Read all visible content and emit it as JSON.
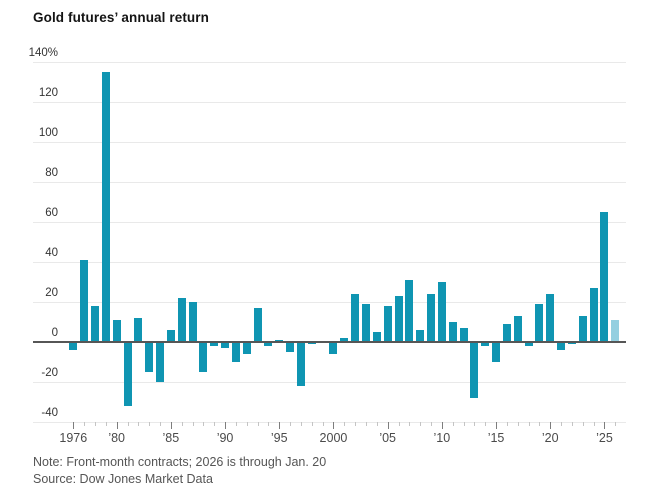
{
  "header": {
    "title": "Gold futures’ annual return"
  },
  "footer": {
    "note": "Note: Front-month contracts; 2026 is through Jan. 20",
    "source": "Source: Dow Jones Market Data"
  },
  "chart_data": {
    "type": "bar",
    "title": "Gold futures’ annual return",
    "unit": "%",
    "categories": [
      1976,
      1977,
      1978,
      1979,
      1980,
      1981,
      1982,
      1983,
      1984,
      1985,
      1986,
      1987,
      1988,
      1989,
      1990,
      1991,
      1992,
      1993,
      1994,
      1995,
      1996,
      1997,
      1998,
      1999,
      2000,
      2001,
      2002,
      2003,
      2004,
      2005,
      2006,
      2007,
      2008,
      2009,
      2010,
      2011,
      2012,
      2013,
      2014,
      2015,
      2016,
      2017,
      2018,
      2019,
      2020,
      2021,
      2022,
      2023,
      2024,
      2025,
      2026
    ],
    "values": [
      -4,
      41,
      18,
      135,
      11,
      -32,
      12,
      -15,
      -20,
      6,
      22,
      20,
      -15,
      -2,
      -3,
      -10,
      -6,
      17,
      -2,
      1,
      -5,
      -22,
      -1,
      0,
      -6,
      2,
      24,
      19,
      5,
      18,
      23,
      31,
      6,
      24,
      30,
      10,
      7,
      -28,
      -2,
      -10,
      9,
      13,
      -2,
      19,
      24,
      -4,
      -1,
      13,
      27,
      65,
      11
    ],
    "highlight_years": [
      2026
    ],
    "ylim": [
      -40,
      140
    ],
    "grid": true,
    "legend_position": "none",
    "yticks": [
      {
        "value": 140,
        "label": "140%"
      },
      {
        "value": 120,
        "label": "120"
      },
      {
        "value": 100,
        "label": "100"
      },
      {
        "value": 80,
        "label": "80"
      },
      {
        "value": 60,
        "label": "60"
      },
      {
        "value": 40,
        "label": "40"
      },
      {
        "value": 20,
        "label": "20"
      },
      {
        "value": 0,
        "label": "0"
      },
      {
        "value": -20,
        "label": "-20"
      },
      {
        "value": -40,
        "label": "-40"
      }
    ],
    "xticks": [
      {
        "year": 1976,
        "label": "1976"
      },
      {
        "year": 1980,
        "label": "’80"
      },
      {
        "year": 1985,
        "label": "’85"
      },
      {
        "year": 1990,
        "label": "’90"
      },
      {
        "year": 1995,
        "label": "’95"
      },
      {
        "year": 2000,
        "label": "2000"
      },
      {
        "year": 2005,
        "label": "’05"
      },
      {
        "year": 2010,
        "label": "’10"
      },
      {
        "year": 2015,
        "label": "’15"
      },
      {
        "year": 2020,
        "label": "’20"
      },
      {
        "year": 2025,
        "label": "’25"
      }
    ],
    "colors": {
      "bar": "#0f95b2",
      "highlight_bar": "#94cfe0",
      "gridline": "#e9e9e9",
      "zero_line": "#565656",
      "minor_tick": "#c4c4c4",
      "major_tick": "#7d7d7d"
    }
  }
}
